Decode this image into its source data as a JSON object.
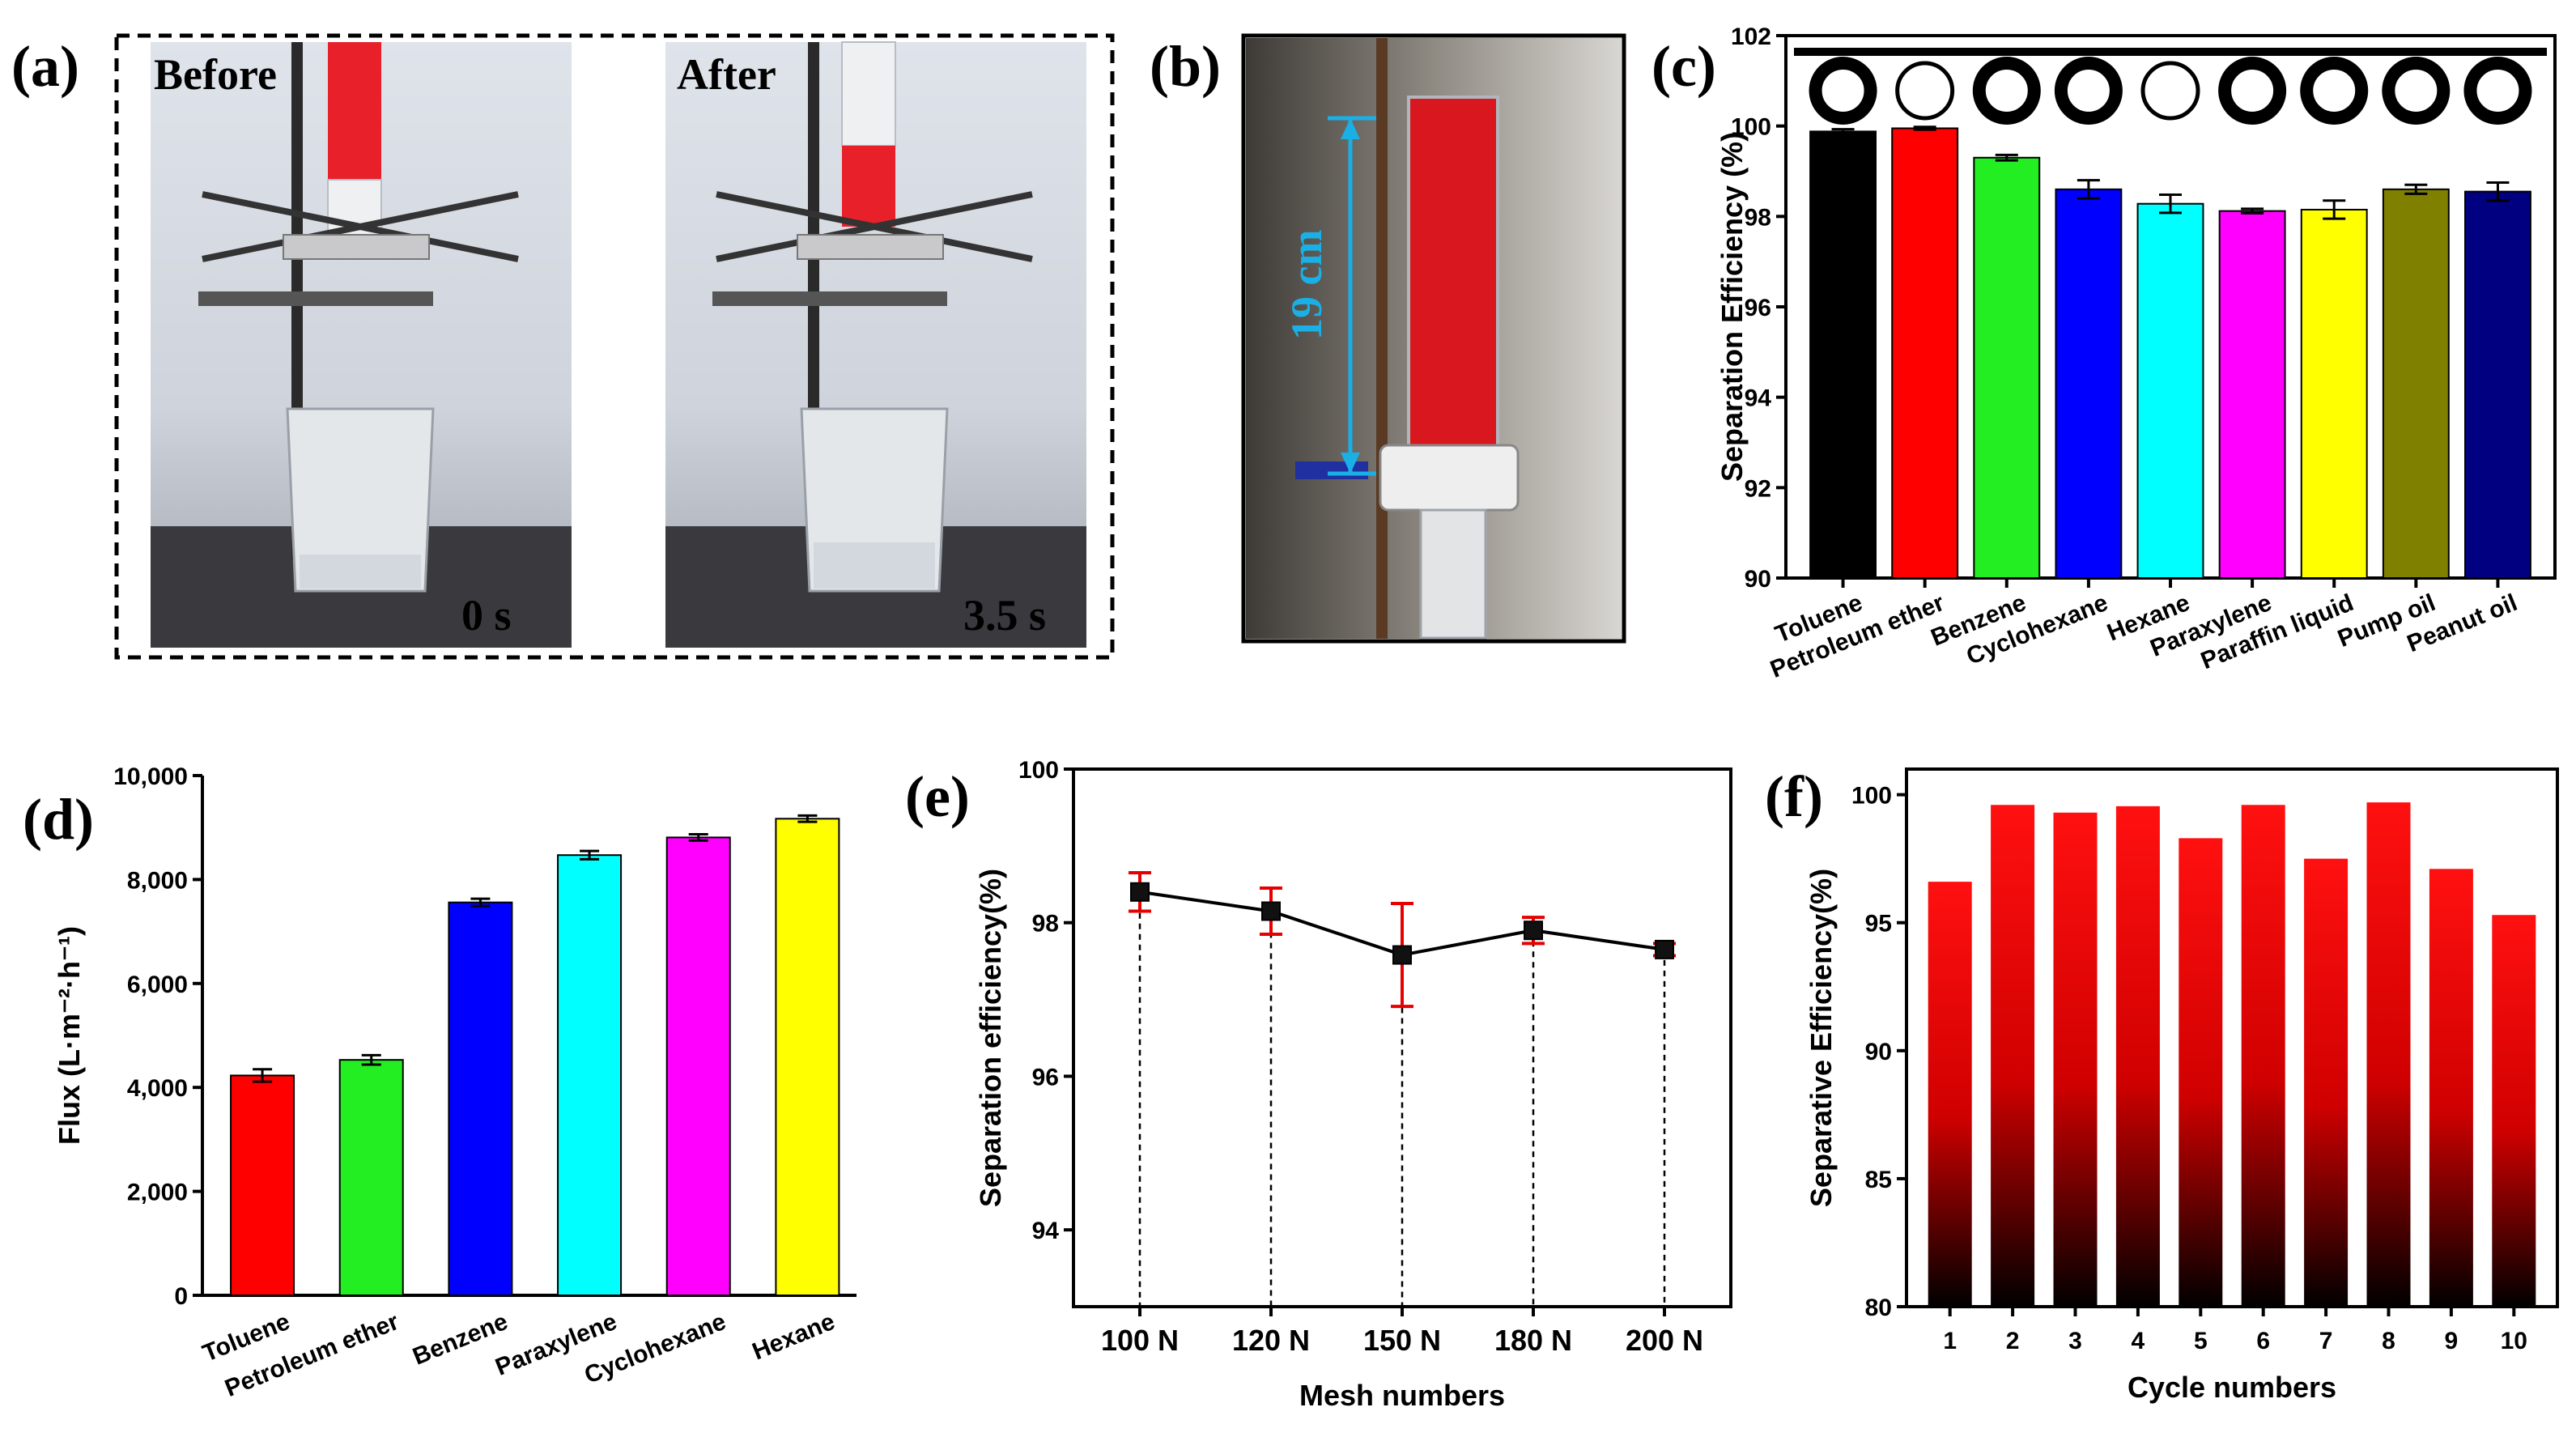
{
  "panels": {
    "a": "(a)",
    "b": "(b)",
    "c": "(c)",
    "d": "(d)",
    "e": "(e)",
    "f": "(f)"
  },
  "photo_a": {
    "left_caption": "Before",
    "right_caption": "After",
    "left_time": "0 s",
    "right_time": "3.5 s"
  },
  "photo_b": {
    "height_label": "19 cm"
  },
  "colors": {
    "liquid_red": "#e8202a",
    "annotation_cyan": "#1ab0e6",
    "error_red": "#e60000"
  },
  "chart_data": [
    {
      "id": "c",
      "type": "bar",
      "title": "",
      "xlabel": "",
      "ylabel": "Separation Efficiency (%)",
      "ylim": [
        90,
        102
      ],
      "yticks": [
        "90",
        "92",
        "94",
        "96",
        "98",
        "100",
        "102"
      ],
      "categories": [
        "Toluene",
        "Petroleum ether",
        "Benzene",
        "Cyclohexane",
        "Hexane",
        "Paraxylene",
        "Paraffin liquid",
        "Pump oil",
        "Peanut oil"
      ],
      "values": [
        99.88,
        99.95,
        99.3,
        98.6,
        98.28,
        98.12,
        98.15,
        98.6,
        98.55
      ],
      "errors": [
        0.05,
        0.03,
        0.06,
        0.2,
        0.2,
        0.05,
        0.2,
        0.1,
        0.2
      ],
      "colors": [
        "#000000",
        "#ff0000",
        "#22ee22",
        "#0000ff",
        "#00ffff",
        "#ff00ff",
        "#ffff00",
        "#808000",
        "#000080"
      ],
      "legend": "none"
    },
    {
      "id": "d",
      "type": "bar",
      "title": "",
      "xlabel": "",
      "ylabel": "Flux (L·m⁻²·h⁻¹)",
      "ylim": [
        0,
        10000
      ],
      "yticks": [
        "0",
        "2,000",
        "4,000",
        "6,000",
        "8,000",
        "10,000"
      ],
      "categories": [
        "Toluene",
        "Petroleum ether",
        "Benzene",
        "Paraxylene",
        "Cyclohexane",
        "Hexane"
      ],
      "values": [
        4230,
        4530,
        7560,
        8470,
        8810,
        9170
      ],
      "errors": [
        120,
        90,
        70,
        80,
        60,
        60
      ],
      "colors": [
        "#ff0000",
        "#22ee22",
        "#0000ff",
        "#00ffff",
        "#ff00ff",
        "#ffff00"
      ],
      "legend": "none"
    },
    {
      "id": "e",
      "type": "line",
      "title": "",
      "xlabel": "Mesh numbers",
      "ylabel": "Separation efficiency(%)",
      "ylim": [
        93,
        100
      ],
      "yticks": [
        "94",
        "96",
        "98",
        "100"
      ],
      "categories": [
        "100 N",
        "120 N",
        "150 N",
        "180 N",
        "200 N"
      ],
      "values": [
        98.4,
        98.15,
        97.58,
        97.9,
        97.65
      ],
      "errors": [
        0.25,
        0.3,
        0.67,
        0.17,
        0.08
      ],
      "legend": "none"
    },
    {
      "id": "f",
      "type": "bar",
      "title": "",
      "xlabel": "Cycle numbers",
      "ylabel": "Separative Efficiency(%)",
      "ylim": [
        80,
        101
      ],
      "yticks": [
        "80",
        "85",
        "90",
        "95",
        "100"
      ],
      "categories": [
        "1",
        "2",
        "3",
        "4",
        "5",
        "6",
        "7",
        "8",
        "9",
        "10"
      ],
      "values": [
        96.6,
        99.6,
        99.3,
        99.55,
        98.3,
        99.6,
        97.5,
        99.7,
        97.1,
        95.3
      ],
      "legend": "none"
    }
  ]
}
